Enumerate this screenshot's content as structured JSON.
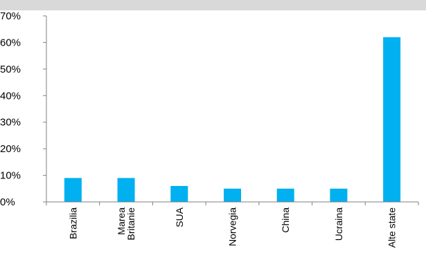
{
  "chart_data": {
    "type": "bar",
    "title": "",
    "xlabel": "",
    "ylabel": "",
    "categories": [
      [
        "Brazilia"
      ],
      [
        "Marea",
        "Britanie"
      ],
      [
        "SUA"
      ],
      [
        "Norvegia"
      ],
      [
        "China"
      ],
      [
        "Ucraina"
      ],
      [
        "Alte state"
      ]
    ],
    "values": [
      9,
      9,
      6,
      5,
      5,
      5,
      62
    ],
    "ylim": [
      0,
      70
    ],
    "yticks": [
      0,
      10,
      20,
      30,
      40,
      50,
      60,
      70
    ],
    "ytick_labels": [
      "0%",
      "10%",
      "20%",
      "30%",
      "40%",
      "50%",
      "60%",
      "70%"
    ],
    "grid": false,
    "colors": {
      "bar": "#00B0F0",
      "axis": "#7f7f7f",
      "header_band": "#d9d9d9"
    }
  }
}
